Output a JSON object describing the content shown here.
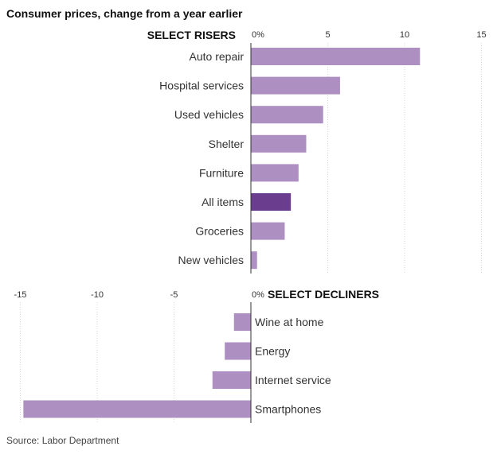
{
  "chart_data": {
    "type": "bar",
    "orientation": "horizontal",
    "title": "Consumer prices, change from a year earlier",
    "source": "Source: Labor Department",
    "unit_label": "%",
    "colors": {
      "bar": "#ad8fc2",
      "highlight": "#6b3d8e"
    },
    "grid": true,
    "panels": [
      {
        "name": "SELECT RISERS",
        "xlim": [
          0,
          15
        ],
        "ticks": [
          0,
          5,
          10,
          15
        ],
        "tick_labels": [
          "0%",
          "5",
          "10",
          "15"
        ],
        "categories": [
          "Auto repair",
          "Hospital services",
          "Used vehicles",
          "Shelter",
          "Furniture",
          "All items",
          "Groceries",
          "New vehicles"
        ],
        "values": [
          11.0,
          5.8,
          4.7,
          3.6,
          3.1,
          2.6,
          2.2,
          0.4
        ],
        "highlight": "All items"
      },
      {
        "name": "SELECT DECLINERS",
        "xlim": [
          -15,
          0
        ],
        "ticks": [
          -15,
          -10,
          -5,
          0
        ],
        "tick_labels": [
          "-15",
          "-10",
          "-5",
          "0%"
        ],
        "categories": [
          "Wine at home",
          "Energy",
          "Internet service",
          "Smartphones"
        ],
        "values": [
          -1.1,
          -1.7,
          -2.5,
          -14.8
        ]
      }
    ]
  }
}
